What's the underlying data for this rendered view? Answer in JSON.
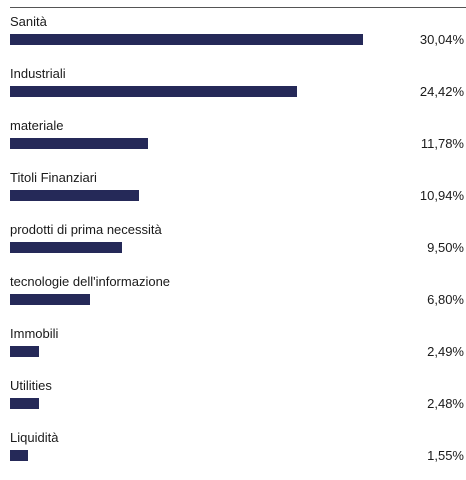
{
  "chart_data": {
    "type": "bar",
    "orientation": "horizontal",
    "categories": [
      "Sanità",
      "Industriali",
      "materiale",
      "Titoli Finanziari",
      "prodotti di prima necessità",
      "tecnologie dell'informazione",
      "Immobili",
      "Utilities",
      "Liquidità"
    ],
    "values": [
      30.04,
      24.42,
      11.78,
      10.94,
      9.5,
      6.8,
      2.49,
      2.48,
      1.55
    ],
    "value_labels": [
      "30,04%",
      "24,42%",
      "11,78%",
      "10,94%",
      "9,50%",
      "6,80%",
      "2,49%",
      "2,48%",
      "1,55%"
    ],
    "bar_color": "#252958",
    "grid": false
  }
}
